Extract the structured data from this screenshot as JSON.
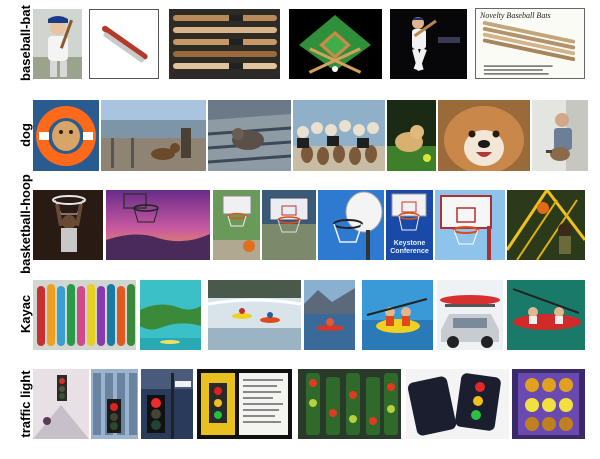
{
  "rows": [
    {
      "label": "baseball-bat"
    },
    {
      "label": "dog"
    },
    {
      "label": "basketball-hoop"
    },
    {
      "label": "Kayac"
    },
    {
      "label": "traffic light"
    }
  ],
  "thumb_text": {
    "novelty_bats": "Novelty Baseball Bats",
    "keystone": "Keystone Conference"
  }
}
